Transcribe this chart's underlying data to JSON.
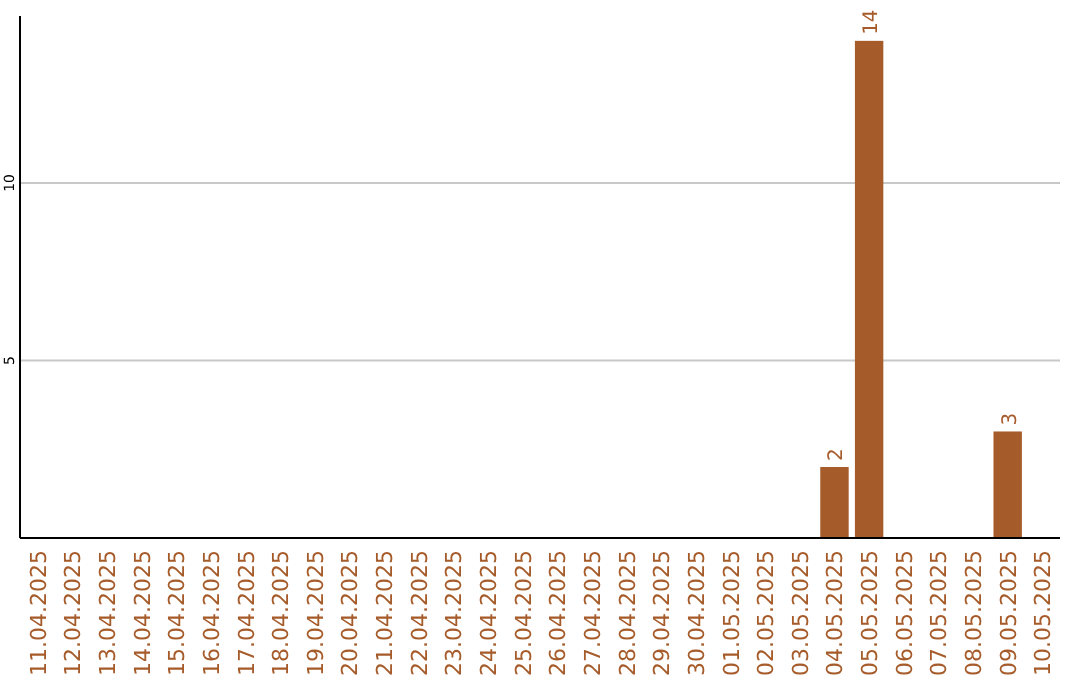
{
  "chart_data": {
    "type": "bar",
    "categories": [
      "11.04.2025",
      "12.04.2025",
      "13.04.2025",
      "14.04.2025",
      "15.04.2025",
      "16.04.2025",
      "17.04.2025",
      "18.04.2025",
      "19.04.2025",
      "20.04.2025",
      "21.04.2025",
      "22.04.2025",
      "23.04.2025",
      "24.04.2025",
      "25.04.2025",
      "26.04.2025",
      "27.04.2025",
      "28.04.2025",
      "29.04.2025",
      "30.04.2025",
      "01.05.2025",
      "02.05.2025",
      "03.05.2025",
      "04.05.2025",
      "05.05.2025",
      "06.05.2025",
      "07.05.2025",
      "08.05.2025",
      "09.05.2025",
      "10.05.2025"
    ],
    "values": [
      0,
      0,
      0,
      0,
      0,
      0,
      0,
      0,
      0,
      0,
      0,
      0,
      0,
      0,
      0,
      0,
      0,
      0,
      0,
      0,
      0,
      0,
      0,
      2,
      14,
      0,
      0,
      0,
      3,
      0
    ],
    "value_labels": [
      null,
      null,
      null,
      null,
      null,
      null,
      null,
      null,
      null,
      null,
      null,
      null,
      null,
      null,
      null,
      null,
      null,
      null,
      null,
      null,
      null,
      null,
      null,
      "2",
      "14",
      null,
      null,
      null,
      "3",
      null
    ],
    "color": "#a65b2a",
    "ylim": [
      0,
      14.7
    ],
    "yticks": [
      5,
      10
    ],
    "grid": "y"
  }
}
